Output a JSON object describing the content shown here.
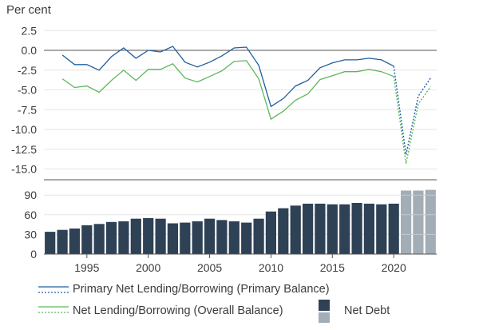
{
  "chart_data": [
    {
      "type": "line",
      "ylabel": "Per cent",
      "ylim": [
        -15,
        2.5
      ],
      "yticks": [
        2.5,
        0.0,
        -2.5,
        -5.0,
        -7.5,
        -10.0,
        -12.5,
        -15.0
      ],
      "ytick_labels": [
        "2.5",
        "0.0",
        "-2.5",
        "-5.0",
        "-7.5",
        "-10.0",
        "-12.5",
        "-15.0"
      ],
      "grid": true,
      "x": [
        1993,
        1994,
        1995,
        1996,
        1997,
        1998,
        1999,
        2000,
        2001,
        2002,
        2003,
        2004,
        2005,
        2006,
        2007,
        2008,
        2009,
        2010,
        2011,
        2012,
        2013,
        2014,
        2015,
        2016,
        2017,
        2018,
        2019,
        2020
      ],
      "series": [
        {
          "name": "Primary Net Lending/Borrowing (Primary Balance)",
          "color": "#1f5fa0",
          "values": [
            -0.6,
            -1.8,
            -1.8,
            -2.5,
            -0.8,
            0.3,
            -1.0,
            0.0,
            -0.2,
            0.5,
            -1.5,
            -2.1,
            -1.5,
            -0.7,
            0.3,
            0.4,
            -1.9,
            -7.1,
            -6.1,
            -4.5,
            -3.8,
            -2.2,
            -1.6,
            -1.2,
            -1.2,
            -1.0,
            -1.2,
            -2.0
          ],
          "projection": {
            "x": [
              2020,
              2021,
              2022,
              2023
            ],
            "values": [
              -2.0,
              -13.2,
              -5.8,
              -3.5
            ]
          }
        },
        {
          "name": "Net Lending/Borrowing (Overall Balance)",
          "color": "#5cb85c",
          "values": [
            -3.6,
            -4.7,
            -4.5,
            -5.3,
            -3.8,
            -2.5,
            -3.8,
            -2.4,
            -2.4,
            -1.7,
            -3.5,
            -4.0,
            -3.3,
            -2.6,
            -1.4,
            -1.3,
            -3.6,
            -8.7,
            -7.7,
            -6.3,
            -5.5,
            -3.7,
            -3.2,
            -2.7,
            -2.7,
            -2.4,
            -2.7,
            -3.3
          ],
          "projection": {
            "x": [
              2020,
              2021,
              2022,
              2023
            ],
            "values": [
              -3.3,
              -14.3,
              -6.8,
              -4.6
            ]
          }
        }
      ]
    },
    {
      "type": "bar",
      "ylim": [
        0,
        100
      ],
      "yticks": [
        0,
        30,
        60,
        90
      ],
      "ytick_labels": [
        "0",
        "30",
        "60",
        "90"
      ],
      "grid": true,
      "categories": [
        1992,
        1993,
        1994,
        1995,
        1996,
        1997,
        1998,
        1999,
        2000,
        2001,
        2002,
        2003,
        2004,
        2005,
        2006,
        2007,
        2008,
        2009,
        2010,
        2011,
        2012,
        2013,
        2014,
        2015,
        2016,
        2017,
        2018,
        2019,
        2020,
        2021,
        2022,
        2023
      ],
      "series": [
        {
          "name": "Net Debt",
          "color": "#2e4155",
          "projection_color": "#a3adb6",
          "values": [
            34,
            37,
            39,
            44,
            46,
            49,
            50,
            54,
            55,
            54,
            47,
            48,
            50,
            54,
            52,
            50,
            48,
            54,
            65,
            70,
            74,
            77,
            77,
            76,
            76,
            78,
            77,
            76,
            77,
            97,
            97,
            98
          ],
          "projection_from": 2021
        }
      ]
    },
    {
      "type": "axis",
      "xticks": [
        1995,
        2000,
        2005,
        2010,
        2015,
        2020
      ],
      "xtick_labels": [
        "1995",
        "2000",
        "2005",
        "2010",
        "2015",
        "2020"
      ]
    }
  ],
  "legend": {
    "items": [
      {
        "label": "Primary Net Lending/Borrowing (Primary Balance)"
      },
      {
        "label": "Net Lending/Borrowing (Overall Balance)"
      },
      {
        "label": "Net Debt"
      }
    ]
  }
}
